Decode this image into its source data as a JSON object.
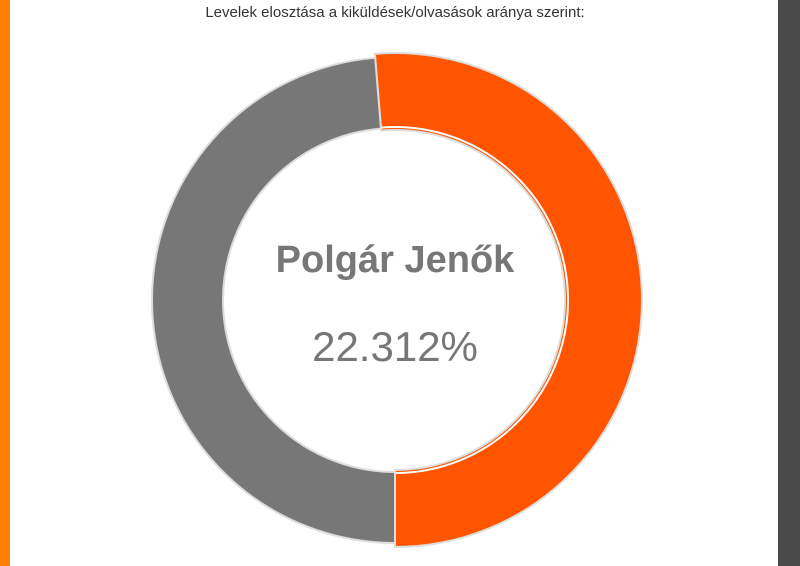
{
  "chart_data": {
    "type": "donut",
    "title": "Levelek elosztása a kiküldések/olvasások aránya szerint:",
    "categories": [
      "Polgár Jenők",
      null
    ],
    "values": [
      51.3,
      48.7
    ],
    "colors": [
      "#ff5500",
      "#777777"
    ],
    "center_label": "22.312%"
  }
}
